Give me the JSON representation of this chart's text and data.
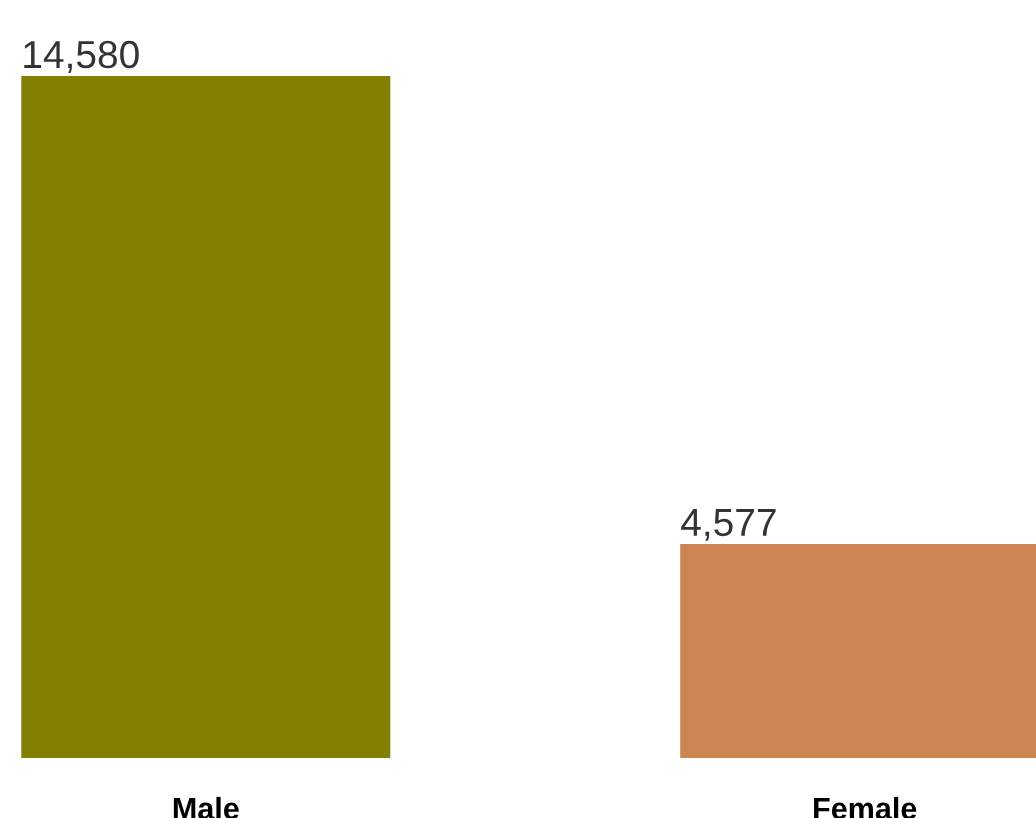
{
  "chart_data": {
    "type": "bar",
    "categories": [
      "Male",
      "Female"
    ],
    "values": [
      14580,
      4577
    ],
    "colors": [
      "#837f00",
      "#cc8450"
    ],
    "value_labels": [
      "14,580",
      "4,577"
    ],
    "grid": false,
    "legend": false,
    "tick_labels": "x"
  }
}
